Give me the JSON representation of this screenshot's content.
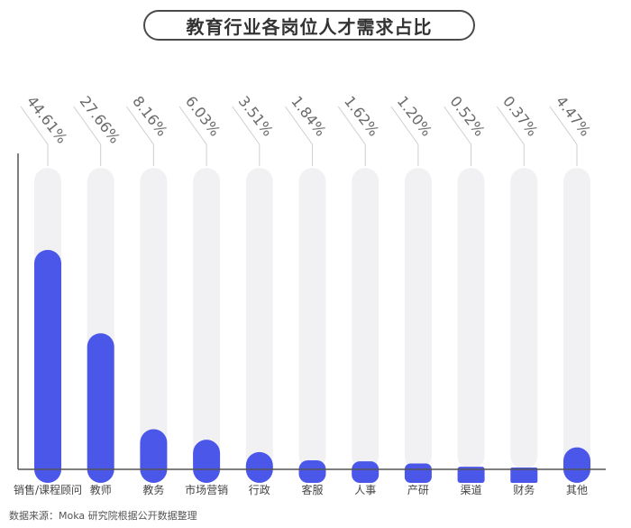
{
  "title": "教育行业各岗位人才需求占比",
  "source": "数据来源：Moka 研究院根据公开数据整理",
  "colors": {
    "bar": "#4b57e8",
    "track": "#f1f1f3",
    "axis": "#555555",
    "label": "#444444",
    "value": "#6a6a6a"
  },
  "chart_data": {
    "type": "bar",
    "categories": [
      "销售/课程顾问",
      "教师",
      "教务",
      "市场营销",
      "行政",
      "客服",
      "人事",
      "产研",
      "渠道",
      "财务",
      "其他"
    ],
    "values": [
      44.61,
      27.66,
      8.16,
      6.03,
      3.51,
      1.84,
      1.62,
      1.2,
      0.52,
      0.37,
      4.47
    ],
    "data_labels": [
      "44.61%",
      "27.66%",
      "8.16%",
      "6.03%",
      "3.51%",
      "1.84%",
      "1.62%",
      "1.20%",
      "0.52%",
      "0.37%",
      "4.47%"
    ],
    "unit": "%",
    "title": "教育行业各岗位人才需求占比",
    "xlabel": "",
    "ylabel": "",
    "grid": false,
    "legend": "none"
  }
}
